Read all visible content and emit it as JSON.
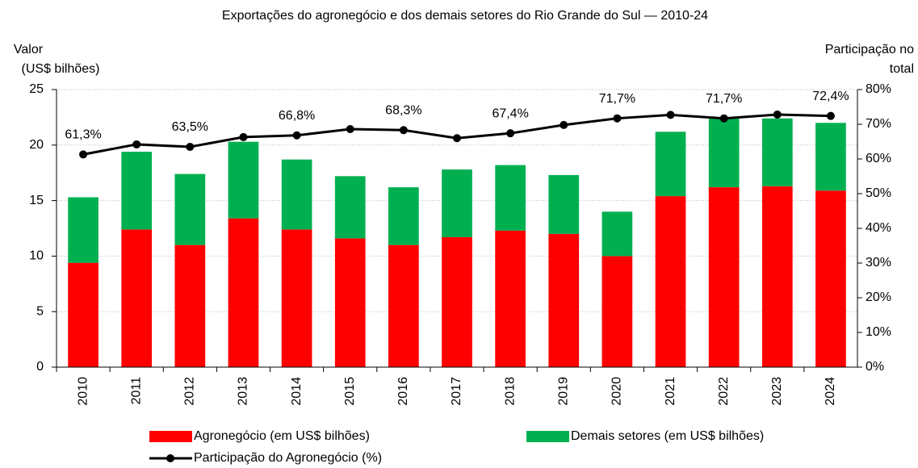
{
  "chart_data": {
    "type": "bar",
    "title": "Exportações do agronegócio e dos demais setores do Rio Grande do Sul — 2010-24",
    "y_label": [
      "Valor",
      "(US$ bilhões)"
    ],
    "y2_label": [
      "Participação no",
      "total"
    ],
    "categories": [
      "2010",
      "2011",
      "2012",
      "2013",
      "2014",
      "2015",
      "2016",
      "2017",
      "2018",
      "2019",
      "2020",
      "2021",
      "2022",
      "2023",
      "2024"
    ],
    "series": [
      {
        "name": "Agronegócio (em US$ bilhões)",
        "color": "#ff0000",
        "stack": true,
        "values": [
          9.4,
          12.4,
          11.0,
          13.4,
          12.4,
          11.6,
          11.0,
          11.7,
          12.3,
          12.0,
          10.0,
          15.4,
          16.2,
          16.3,
          15.9
        ]
      },
      {
        "name": "Demais setores (em US$ bilhões)",
        "color": "#00b050",
        "stack": true,
        "values": [
          5.9,
          7.0,
          6.4,
          6.9,
          6.3,
          5.6,
          5.2,
          6.1,
          5.9,
          5.3,
          4.0,
          5.8,
          6.3,
          6.1,
          6.1
        ]
      },
      {
        "name": "Participação do Agronegócio (%)",
        "color": "#000000",
        "type": "line",
        "axis": "y2",
        "values": [
          61.3,
          64.2,
          63.5,
          66.3,
          66.8,
          68.6,
          68.3,
          66.0,
          67.4,
          69.8,
          71.7,
          72.7,
          71.7,
          72.8,
          72.4
        ],
        "value_labels": [
          "61,3%",
          null,
          "63,5%",
          null,
          "66,8%",
          null,
          "68,3%",
          null,
          "67,4%",
          null,
          "71,7%",
          null,
          "71,7%",
          null,
          "72,4%"
        ]
      }
    ],
    "ylim": [
      0,
      25
    ],
    "yticks": [
      0,
      5,
      10,
      15,
      20,
      25
    ],
    "y2lim": [
      0,
      80
    ],
    "y2ticks": [
      {
        "value": 0,
        "label": "0%"
      },
      {
        "value": 10,
        "label": "10%"
      },
      {
        "value": 20,
        "label": "20%"
      },
      {
        "value": 30,
        "label": "30%"
      },
      {
        "value": 40,
        "label": "40%"
      },
      {
        "value": 50,
        "label": "50%"
      },
      {
        "value": 60,
        "label": "60%"
      },
      {
        "value": 70,
        "label": "70%"
      },
      {
        "value": 80,
        "label": "80%"
      }
    ],
    "grid": true
  }
}
